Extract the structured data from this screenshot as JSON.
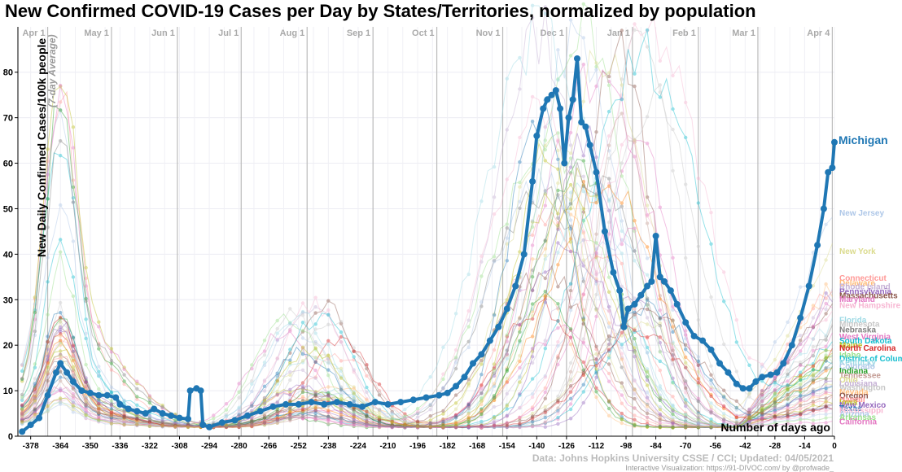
{
  "chart_data": {
    "type": "line",
    "title": "New Confirmed COVID-19 Cases per Day by States/Territories, normalized by population",
    "ylabel": "New Daily Confirmed Cases/100k people",
    "ylabel_sub": "(7-day Average)",
    "xlabel": "Number of days ago",
    "ylim": [
      0,
      88
    ],
    "xlim": [
      -384,
      0
    ],
    "y_ticks": [
      0,
      10,
      20,
      30,
      40,
      50,
      60,
      70,
      80
    ],
    "x_ticks": [
      -378,
      -364,
      -350,
      -336,
      -322,
      -308,
      -294,
      -280,
      -266,
      -252,
      -238,
      -224,
      -210,
      -196,
      -182,
      -168,
      -154,
      -140,
      -126,
      -112,
      -98,
      -84,
      -70,
      -56,
      -42,
      -28,
      -14,
      0
    ],
    "month_markers": [
      {
        "label": "Apr 1",
        "x": -370
      },
      {
        "label": "May 1",
        "x": -340
      },
      {
        "label": "Jun 1",
        "x": -309
      },
      {
        "label": "Jul 1",
        "x": -279
      },
      {
        "label": "Aug 1",
        "x": -248
      },
      {
        "label": "Sep 1",
        "x": -217
      },
      {
        "label": "Oct 1",
        "x": -187
      },
      {
        "label": "Nov 1",
        "x": -156
      },
      {
        "label": "Dec 1",
        "x": -126
      },
      {
        "label": "Jan 1",
        "x": -95
      },
      {
        "label": "Feb 1",
        "x": -64
      },
      {
        "label": "Mar 1",
        "x": -36
      },
      {
        "label": "Apr 4",
        "x": -1
      }
    ],
    "highlight": {
      "name": "Michigan",
      "color": "#1f77b4",
      "points": [
        [
          -382,
          1
        ],
        [
          -378,
          2.5
        ],
        [
          -374,
          4
        ],
        [
          -370,
          9
        ],
        [
          -366,
          14
        ],
        [
          -364,
          16
        ],
        [
          -361,
          14
        ],
        [
          -358,
          12
        ],
        [
          -354,
          10
        ],
        [
          -350,
          9.5
        ],
        [
          -346,
          9
        ],
        [
          -342,
          9
        ],
        [
          -338,
          8.5
        ],
        [
          -336,
          7
        ],
        [
          -332,
          6
        ],
        [
          -328,
          5.5
        ],
        [
          -324,
          5
        ],
        [
          -320,
          6
        ],
        [
          -316,
          5
        ],
        [
          -312,
          4.5
        ],
        [
          -308,
          4
        ],
        [
          -304,
          3.8
        ],
        [
          -303,
          10
        ],
        [
          -300,
          10.5
        ],
        [
          -298,
          10
        ],
        [
          -297,
          2.5
        ],
        [
          -294,
          2
        ],
        [
          -288,
          3
        ],
        [
          -282,
          3.5
        ],
        [
          -276,
          4.5
        ],
        [
          -270,
          5.5
        ],
        [
          -264,
          6.5
        ],
        [
          -258,
          7
        ],
        [
          -252,
          7
        ],
        [
          -246,
          7.5
        ],
        [
          -240,
          7
        ],
        [
          -234,
          7.5
        ],
        [
          -228,
          7
        ],
        [
          -222,
          6.5
        ],
        [
          -216,
          7.5
        ],
        [
          -210,
          7
        ],
        [
          -204,
          7.5
        ],
        [
          -198,
          8
        ],
        [
          -192,
          8.5
        ],
        [
          -186,
          9
        ],
        [
          -182,
          9.5
        ],
        [
          -178,
          11
        ],
        [
          -174,
          13
        ],
        [
          -170,
          16
        ],
        [
          -166,
          18
        ],
        [
          -162,
          21
        ],
        [
          -158,
          24
        ],
        [
          -154,
          28
        ],
        [
          -150,
          33
        ],
        [
          -146,
          40
        ],
        [
          -142,
          56
        ],
        [
          -140,
          66
        ],
        [
          -137,
          72
        ],
        [
          -135,
          74
        ],
        [
          -133,
          75
        ],
        [
          -131,
          76
        ],
        [
          -129,
          72
        ],
        [
          -127,
          60
        ],
        [
          -125,
          70
        ],
        [
          -123,
          74
        ],
        [
          -121,
          83
        ],
        [
          -119,
          69
        ],
        [
          -117,
          68
        ],
        [
          -115,
          64
        ],
        [
          -112,
          58
        ],
        [
          -108,
          45
        ],
        [
          -104,
          36
        ],
        [
          -101,
          32
        ],
        [
          -99,
          24
        ],
        [
          -97,
          28
        ],
        [
          -94,
          29
        ],
        [
          -91,
          31
        ],
        [
          -88,
          33
        ],
        [
          -86,
          34
        ],
        [
          -84,
          44
        ],
        [
          -82,
          35
        ],
        [
          -80,
          34
        ],
        [
          -77,
          32
        ],
        [
          -74,
          29
        ],
        [
          -70,
          25
        ],
        [
          -66,
          22
        ],
        [
          -62,
          21
        ],
        [
          -58,
          19
        ],
        [
          -54,
          16
        ],
        [
          -50,
          14
        ],
        [
          -46,
          11.5
        ],
        [
          -43,
          10.5
        ],
        [
          -40,
          10.5
        ],
        [
          -37,
          12
        ],
        [
          -34,
          13
        ],
        [
          -30,
          13.5
        ],
        [
          -27,
          14
        ],
        [
          -24,
          16
        ],
        [
          -20,
          20
        ],
        [
          -16,
          26
        ],
        [
          -12,
          33
        ],
        [
          -8,
          42
        ],
        [
          -5,
          50
        ],
        [
          -3,
          58
        ],
        [
          -1,
          59
        ],
        [
          0,
          64.6
        ]
      ]
    },
    "series_labels": [
      {
        "name": "New Jersey",
        "value": 49.2,
        "color": "#aec7e8"
      },
      {
        "name": "New York",
        "value": 40.8,
        "color": "#dbdb8d"
      },
      {
        "name": "Connecticut",
        "value": 34.9,
        "color": "#ff9896"
      },
      {
        "name": "Delaware",
        "value": 33.8,
        "color": "#ffbb78"
      },
      {
        "name": "Rhode Island",
        "value": 33.0,
        "color": "#c5b0d5"
      },
      {
        "name": "Pennsylvania",
        "value": 31.9,
        "color": "#9467bd"
      },
      {
        "name": "Massachusetts",
        "value": 31.0,
        "color": "#8c564b"
      },
      {
        "name": "Maryland",
        "value": 30.2,
        "color": "#e377c2"
      },
      {
        "name": "New Hampshire",
        "value": 28.9,
        "color": "#f7b6d2"
      },
      {
        "name": "Florida",
        "value": 25.7,
        "color": "#9edae5"
      },
      {
        "name": "Minnesota",
        "value": 24.8,
        "color": "#c7c7c7"
      },
      {
        "name": "Nebraska",
        "value": 23.5,
        "color": "#7f7f7f"
      },
      {
        "name": "West Virginia",
        "value": 22.0,
        "color": "#e377c2"
      },
      {
        "name": "South Dakota",
        "value": 21.1,
        "color": "#17becf"
      },
      {
        "name": "Maine",
        "value": 20.1,
        "color": "#bcbd22"
      },
      {
        "name": "North Carolina",
        "value": 19.5,
        "color": "#d62728"
      },
      {
        "name": "Idaho",
        "value": 18.0,
        "color": "#98df8a"
      },
      {
        "name": "District of Columbia",
        "value": 17.2,
        "color": "#17becf"
      },
      {
        "name": "Kentucky",
        "value": 16.4,
        "color": "#9edae5"
      },
      {
        "name": "Colorado",
        "value": 15.5,
        "color": "#aec7e8"
      },
      {
        "name": "Indiana",
        "value": 14.5,
        "color": "#2ca02c"
      },
      {
        "name": "Tennessee",
        "value": 13.5,
        "color": "#c49c94"
      },
      {
        "name": "Ohio",
        "value": 12.5,
        "color": "#dbdb8d"
      },
      {
        "name": "Louisiana",
        "value": 11.7,
        "color": "#c5b0d5"
      },
      {
        "name": "Washington",
        "value": 10.8,
        "color": "#c7c7c7"
      },
      {
        "name": "Nevada",
        "value": 9.8,
        "color": "#ffbb78"
      },
      {
        "name": "Oregon",
        "value": 9.0,
        "color": "#8c564b"
      },
      {
        "name": "Hawaii",
        "value": 8.2,
        "color": "#ff9896"
      },
      {
        "name": "Iowa",
        "value": 7.6,
        "color": "#bcbd22"
      },
      {
        "name": "New Mexico",
        "value": 7.0,
        "color": "#9467bd"
      },
      {
        "name": "Texas",
        "value": 6.3,
        "color": "#1f77b4"
      },
      {
        "name": "Mississippi",
        "value": 5.8,
        "color": "#f7b6d2"
      },
      {
        "name": "Arizona",
        "value": 5.0,
        "color": "#aec7e8"
      },
      {
        "name": "Arkansas",
        "value": 4.3,
        "color": "#98df8a"
      },
      {
        "name": "California",
        "value": 3.3,
        "color": "#e377c2"
      }
    ],
    "background_color_palette": [
      "#1f77b4",
      "#ff7f0e",
      "#2ca02c",
      "#d62728",
      "#9467bd",
      "#8c564b",
      "#e377c2",
      "#7f7f7f",
      "#bcbd22",
      "#17becf",
      "#aec7e8",
      "#ffbb78",
      "#98df8a",
      "#ff9896",
      "#c5b0d5",
      "#c49c94",
      "#f7b6d2",
      "#dbdb8d",
      "#9edae5"
    ],
    "source": "Data: Johns Hopkins University CSSE / CCI; Updated: 04/05/2021",
    "credit": "Interactive Visualization: https://91-DIVOC.com/ by @profwade_"
  }
}
